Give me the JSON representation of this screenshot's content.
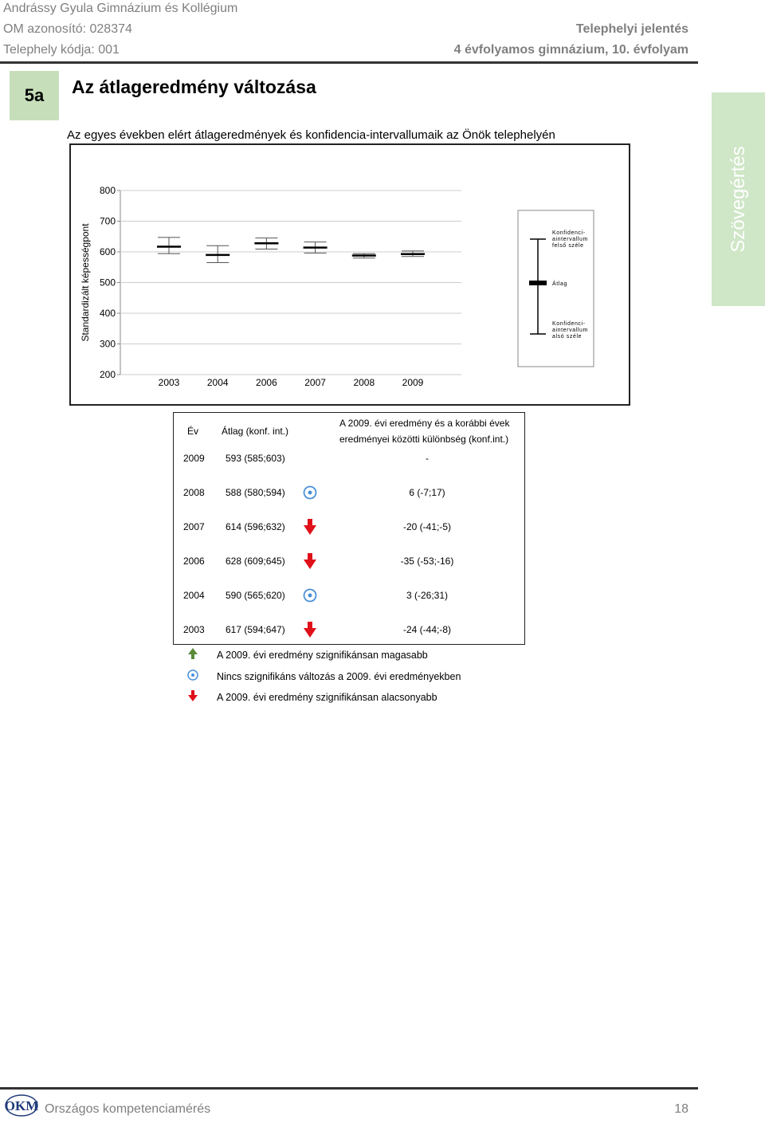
{
  "header": {
    "school_name": "Andrássy Gyula Gimnázium és Kollégium",
    "om_id": "OM azonosító: 028374",
    "site_code": "Telephely kódja: 001",
    "report_type": "Telephelyi jelentés",
    "grade": "4 évfolyamos gimnázium, 10. évfolyam"
  },
  "section": {
    "number": "5a",
    "title": "Az átlageredmény változása",
    "subtitle": "Az egyes években elért átlageredmények és konfidencia-intervallumaik az Önök telephelyén"
  },
  "side_tab": "Szövegértés",
  "chart_data": {
    "type": "errorbar",
    "ylabel": "Standardizált képességpont",
    "ylim": [
      200,
      800
    ],
    "yticks": [
      200,
      300,
      400,
      500,
      600,
      700,
      800
    ],
    "categories": [
      "2003",
      "2004",
      "2006",
      "2007",
      "2008",
      "2009"
    ],
    "mean": [
      617,
      590,
      628,
      614,
      588,
      593
    ],
    "lower": [
      594,
      565,
      609,
      596,
      580,
      585
    ],
    "upper": [
      647,
      620,
      645,
      632,
      594,
      603
    ],
    "key": {
      "upper_label_1": "Konfidenci-",
      "upper_label_2": "aintervallum",
      "upper_label_3": "felső széle",
      "mean_label": "Átlag",
      "lower_label_1": "Konfidenci-",
      "lower_label_2": "aintervallum",
      "lower_label_3": "alsó széle"
    }
  },
  "table": {
    "col_year": "Év",
    "col_mean": "Átlag (konf. int.)",
    "col_diff_1": "A 2009. évi eredmény és a korábbi évek",
    "col_diff_2": "eredményei közötti különbség (konf.int.)",
    "rows": [
      {
        "year": "2009",
        "mean": "593 (585;603)",
        "icon": "none",
        "diff": "-"
      },
      {
        "year": "2008",
        "mean": "588 (580;594)",
        "icon": "no-change-icon",
        "diff": "6 (-7;17)"
      },
      {
        "year": "2007",
        "mean": "614 (596;632)",
        "icon": "down-arrow-icon",
        "diff": "-20 (-41;-5)"
      },
      {
        "year": "2006",
        "mean": "628 (609;645)",
        "icon": "down-arrow-icon",
        "diff": "-35 (-53;-16)"
      },
      {
        "year": "2004",
        "mean": "590 (565;620)",
        "icon": "no-change-icon",
        "diff": "3 (-26;31)"
      },
      {
        "year": "2003",
        "mean": "617 (594;647)",
        "icon": "down-arrow-icon",
        "diff": "-24 (-44;-8)"
      }
    ]
  },
  "legend": {
    "up": "A 2009. évi eredmény szignifikánsan magasabb",
    "same": "Nincs szignifikáns változás a 2009. évi eredményekben",
    "down": "A 2009. évi eredmény szignifikánsan alacsonyabb"
  },
  "colors": {
    "section_green": "#c6dfba",
    "side_tab_green": "#cfe6c7",
    "arrow_red": "#e0101a",
    "arrow_green": "#5a8a3a",
    "circle_blue": "#4a90d9",
    "header_gray": "#7f7f7f"
  },
  "footer": {
    "logo_text": "OKM",
    "title": "Országos kompetenciamérés",
    "page": "18"
  }
}
